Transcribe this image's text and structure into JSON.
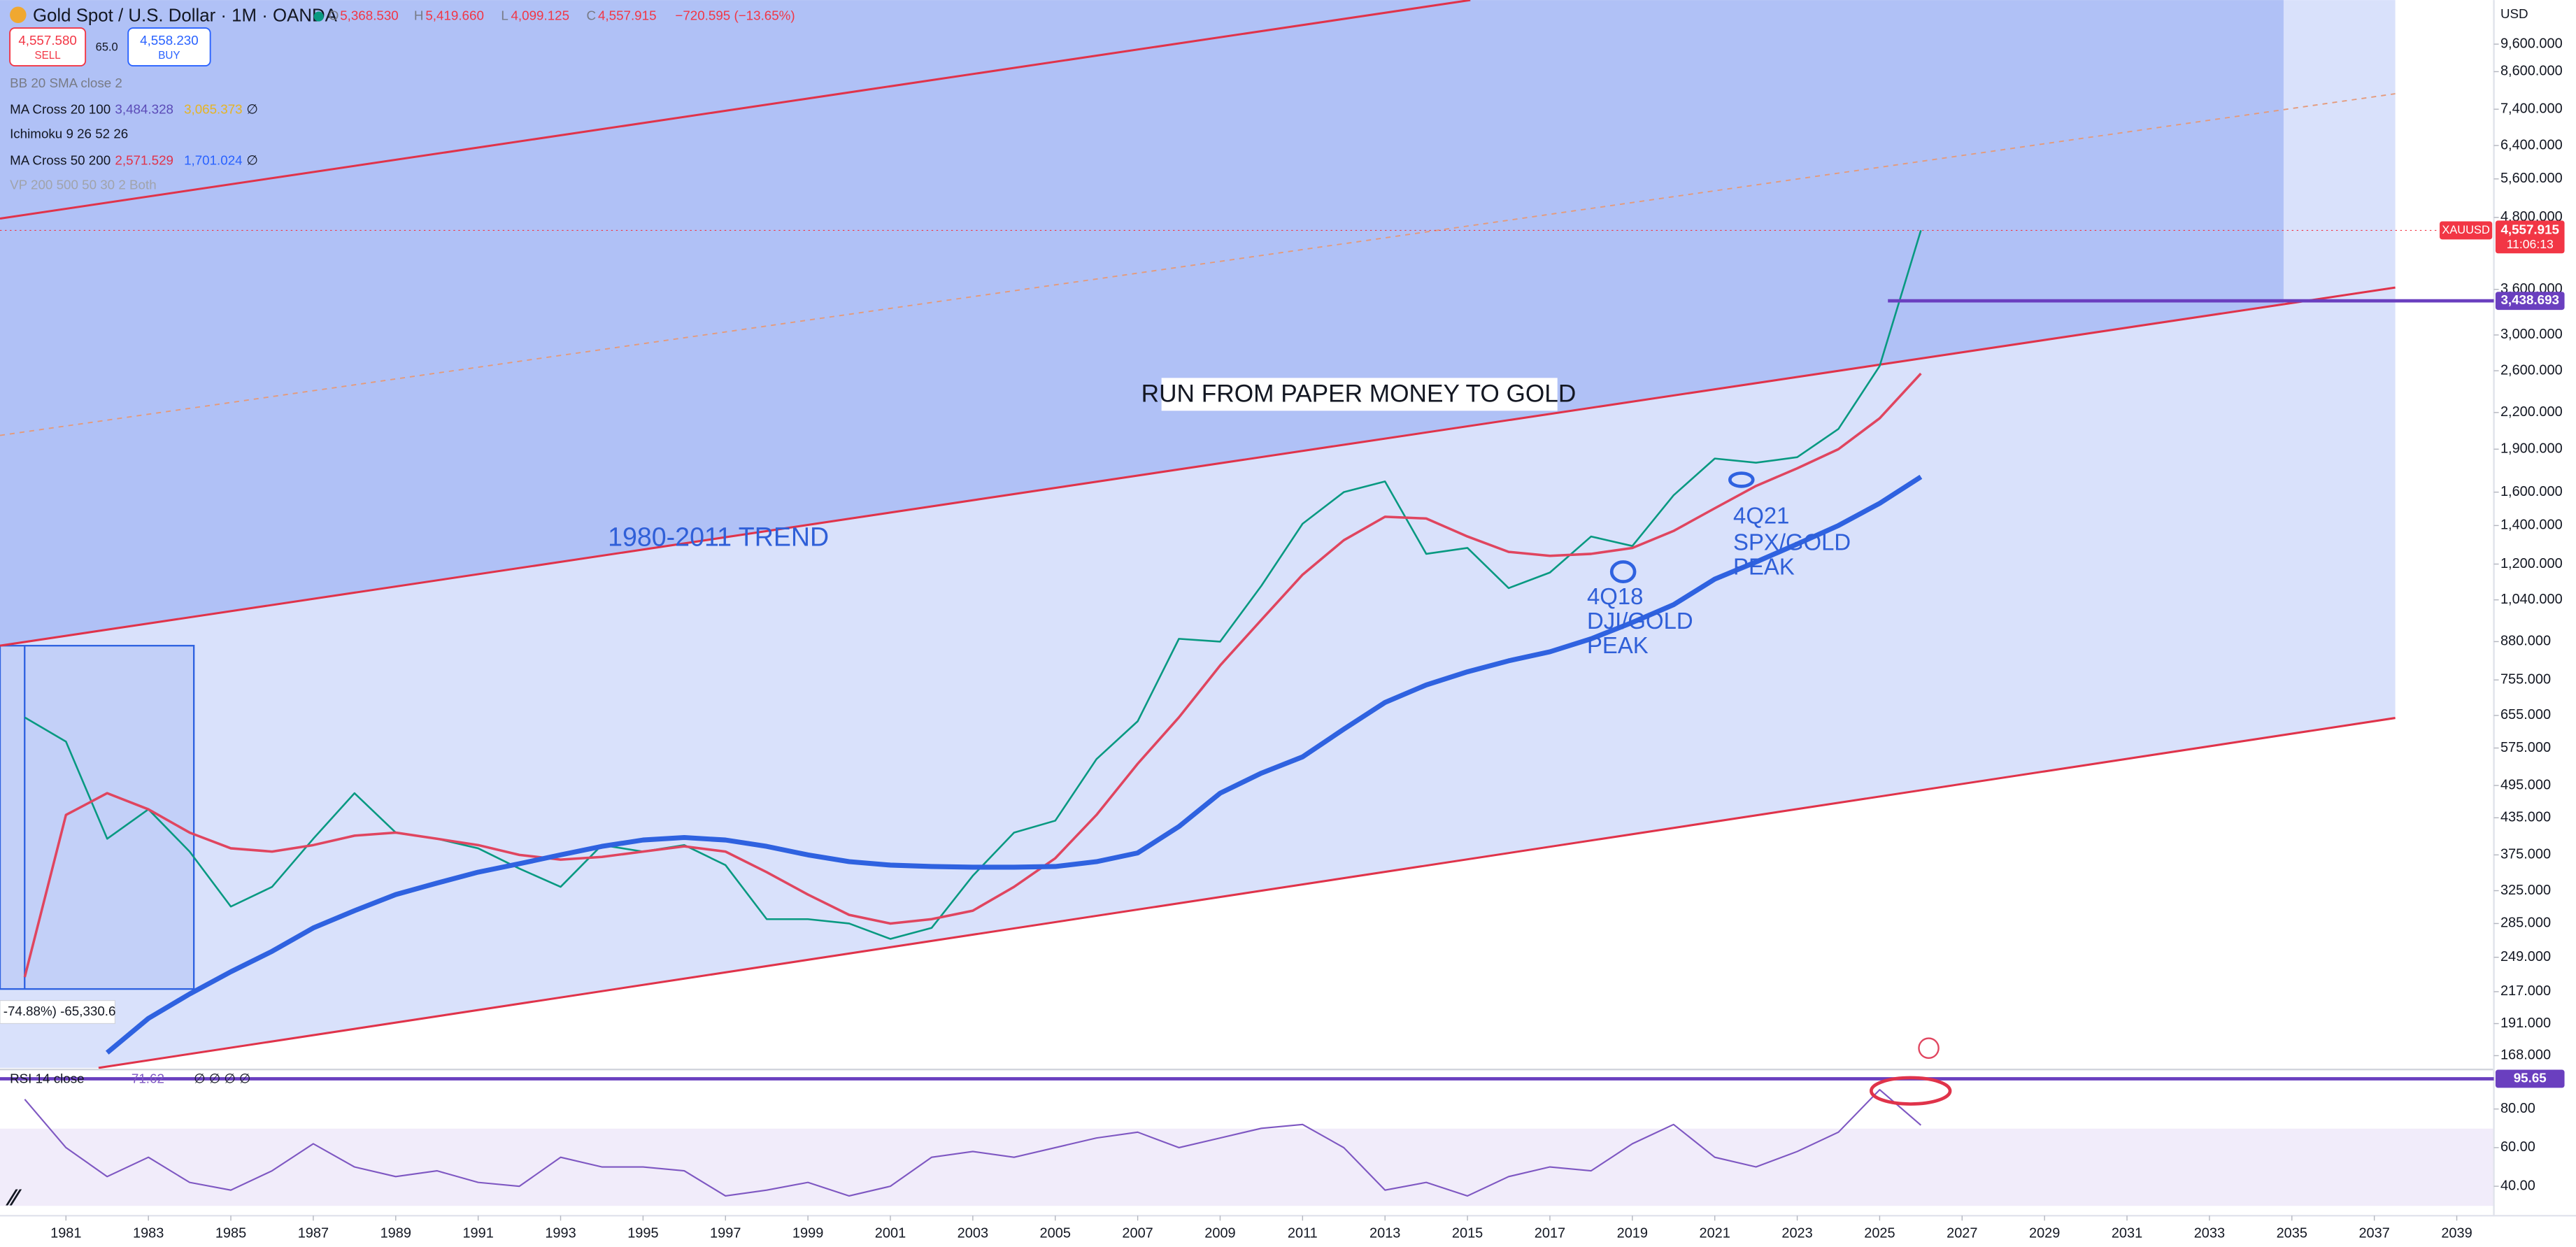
{
  "header": {
    "symbol": "Gold Spot / U.S. Dollar · 1M · OANDA",
    "ohlc": [
      {
        "label": "O",
        "value": "5,368.530"
      },
      {
        "label": "H",
        "value": "5,419.660"
      },
      {
        "label": "L",
        "value": "4,099.125"
      },
      {
        "label": "C",
        "value": "4,557.915"
      }
    ],
    "change": "−720.595 (−13.65%)",
    "sell": {
      "price": "4,557.580",
      "label": "SELL"
    },
    "spread": "65.0",
    "buy": {
      "price": "4,558.230",
      "label": "BUY"
    },
    "currency": "USD"
  },
  "indicators": [
    {
      "name": "BB 20 SMA close 2"
    },
    {
      "name": "MA Cross 20 100",
      "values": [
        "3,484.328",
        "3,065.373",
        "∅"
      ]
    },
    {
      "name": "Ichimoku 9 26 52 26"
    },
    {
      "name": "MA Cross 50 200",
      "values": [
        "2,571.529",
        "1,701.024",
        "∅"
      ]
    },
    {
      "name": "VP 200 500 50 30 2 Both"
    }
  ],
  "rsi_legend": {
    "name": "RSI 14 close",
    "value": "71.62",
    "extra": "∅ ∅ ∅ ∅"
  },
  "price_tags": {
    "symbol": "XAUUSD",
    "price": "4,557.915",
    "countdown": "11:06:13"
  },
  "measure_label": "-74.88%) -65,330.6",
  "annotations": [
    {
      "lines": [
        "RUN FROM PAPER MONEY TO GOLD"
      ]
    },
    {
      "lines": [
        "1980-2011 TREND"
      ]
    },
    {
      "lines": [
        "4Q18",
        "DJI/GOLD",
        "PEAK"
      ]
    },
    {
      "lines": [
        "4Q21",
        "SPX/GOLD",
        "PEAK"
      ]
    }
  ],
  "chart_data": [
    {
      "type": "line",
      "log_scale": true,
      "grid": false,
      "x": [
        1980,
        1981,
        1982,
        1983,
        1984,
        1985,
        1986,
        1987,
        1988,
        1989,
        1990,
        1991,
        1992,
        1993,
        1994,
        1995,
        1996,
        1997,
        1998,
        1999,
        2000,
        2001,
        2002,
        2003,
        2004,
        2005,
        2006,
        2007,
        2008,
        2009,
        2010,
        2011,
        2012,
        2013,
        2014,
        2015,
        2016,
        2017,
        2018,
        2019,
        2020,
        2021,
        2022,
        2023,
        2024,
        2025,
        2026
      ],
      "xlim": [
        1979.4,
        2039.9
      ],
      "ylim": [
        160,
        11450
      ],
      "yticks": [
        {
          "value": 9600,
          "label": "9,600.000"
        },
        {
          "value": 8600,
          "label": "8,600.000"
        },
        {
          "value": 7400,
          "label": "7,400.000"
        },
        {
          "value": 6400,
          "label": "6,400.000"
        },
        {
          "value": 5600,
          "label": "5,600.000"
        },
        {
          "value": 4800,
          "label": "4,800.000"
        },
        {
          "value": 3600,
          "label": "3,600.000"
        },
        {
          "value": 3000,
          "label": "3,000.000"
        },
        {
          "value": 2600,
          "label": "2,600.000"
        },
        {
          "value": 2200,
          "label": "2,200.000"
        },
        {
          "value": 1900,
          "label": "1,900.000"
        },
        {
          "value": 1600,
          "label": "1,600.000"
        },
        {
          "value": 1400,
          "label": "1,400.000"
        },
        {
          "value": 1200,
          "label": "1,200.000"
        },
        {
          "value": 1040,
          "label": "1,040.000"
        },
        {
          "value": 880,
          "label": "880.000"
        },
        {
          "value": 755,
          "label": "755.000"
        },
        {
          "value": 655,
          "label": "655.000"
        },
        {
          "value": 575,
          "label": "575.000"
        },
        {
          "value": 495,
          "label": "495.000"
        },
        {
          "value": 435,
          "label": "435.000"
        },
        {
          "value": 375,
          "label": "375.000"
        },
        {
          "value": 325,
          "label": "325.000"
        },
        {
          "value": 285,
          "label": "285.000"
        },
        {
          "value": 249,
          "label": "249.000"
        },
        {
          "value": 217,
          "label": "217.000"
        },
        {
          "value": 191,
          "label": "191.000"
        },
        {
          "value": 168,
          "label": "168.000"
        }
      ],
      "series": [
        {
          "color": "#089981",
          "values": [
            650,
            590,
            400,
            450,
            380,
            305,
            330,
            400,
            480,
            410,
            400,
            385,
            355,
            330,
            390,
            380,
            390,
            360,
            290,
            290,
            285,
            268,
            280,
            345,
            410,
            430,
            550,
            640,
            890,
            880,
            1100,
            1410,
            1600,
            1670,
            1250,
            1280,
            1090,
            1160,
            1340,
            1290,
            1580,
            1830,
            1800,
            1840,
            2060,
            2650,
            4557.915
          ]
        },
        {
          "color": "#e0455f",
          "values": [
            230,
            440,
            480,
            450,
            410,
            385,
            380,
            390,
            405,
            410,
            400,
            390,
            375,
            368,
            372,
            380,
            388,
            380,
            350,
            320,
            295,
            285,
            290,
            300,
            330,
            370,
            440,
            540,
            650,
            800,
            960,
            1150,
            1320,
            1450,
            1440,
            1340,
            1260,
            1240,
            1250,
            1280,
            1370,
            1500,
            1640,
            1760,
            1900,
            2150,
            2571.529
          ]
        },
        {
          "color": "#2f62e0",
          "values": [
            null,
            null,
            170,
            195,
            215,
            235,
            255,
            280,
            300,
            320,
            335,
            350,
            362,
            375,
            388,
            398,
            402,
            398,
            388,
            375,
            365,
            360,
            358,
            357,
            357,
            358,
            365,
            378,
            420,
            480,
            520,
            555,
            620,
            690,
            740,
            780,
            815,
            845,
            890,
            950,
            1020,
            1130,
            1210,
            1300,
            1400,
            1530,
            1701.024
          ]
        }
      ],
      "hline": {
        "value": 3438.693,
        "label": "3,438.693",
        "color": "#6a3fbf",
        "start": 2025.2
      }
    },
    {
      "type": "line",
      "log_scale": false,
      "grid": false,
      "x": [
        1980,
        1981,
        1982,
        1983,
        1984,
        1985,
        1986,
        1987,
        1988,
        1989,
        1990,
        1991,
        1992,
        1993,
        1994,
        1995,
        1996,
        1997,
        1998,
        1999,
        2000,
        2001,
        2002,
        2003,
        2004,
        2005,
        2006,
        2007,
        2008,
        2009,
        2010,
        2011,
        2012,
        2013,
        2014,
        2015,
        2016,
        2017,
        2018,
        2019,
        2020,
        2021,
        2022,
        2023,
        2024,
        2025,
        2026
      ],
      "xlim": [
        1979.4,
        2039.9
      ],
      "xticks": [
        1981,
        1983,
        1985,
        1987,
        1989,
        1991,
        1993,
        1995,
        1997,
        1999,
        2001,
        2003,
        2005,
        2007,
        2009,
        2011,
        2013,
        2015,
        2017,
        2019,
        2021,
        2023,
        2025,
        2027,
        2029,
        2031,
        2033,
        2035,
        2037,
        2039
      ],
      "ylim": [
        29,
        99.6
      ],
      "yticks": [
        {
          "value": 80,
          "label": "80.00"
        },
        {
          "value": 60,
          "label": "60.00"
        },
        {
          "value": 40,
          "label": "40.00"
        }
      ],
      "series": [
        {
          "color": "#7e57c2",
          "values": [
            85,
            60,
            45,
            55,
            42,
            38,
            48,
            62,
            50,
            45,
            48,
            42,
            40,
            55,
            50,
            50,
            48,
            35,
            38,
            42,
            35,
            40,
            55,
            58,
            55,
            60,
            65,
            68,
            60,
            65,
            70,
            72,
            60,
            38,
            42,
            35,
            45,
            50,
            48,
            62,
            72,
            55,
            50,
            58,
            68,
            90,
            71.62
          ]
        }
      ],
      "hline": {
        "value": 95.65,
        "label": "95.65",
        "color": "#6a3fbf"
      }
    }
  ]
}
